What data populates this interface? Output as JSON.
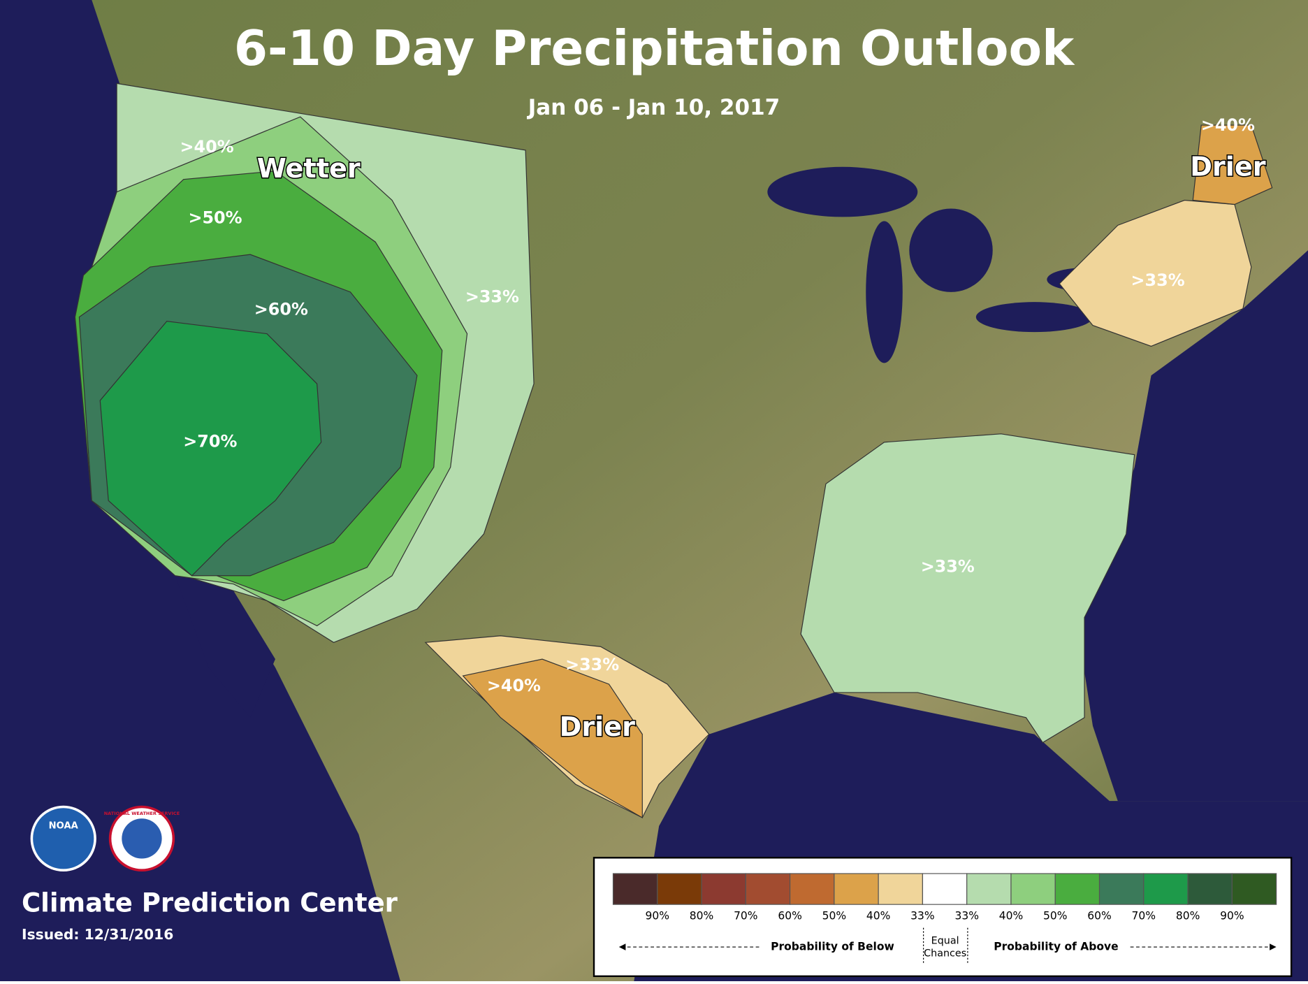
{
  "header": {
    "title": "6-10 Day Precipitation Outlook",
    "subtitle": "Jan 06 - Jan 10, 2017"
  },
  "map_labels": [
    ">40%",
    "Wetter",
    ">50%",
    ">60%",
    ">70%",
    ">33%",
    ">40%",
    "Drier",
    ">33%",
    ">33%",
    ">33%",
    ">40%",
    "Drier"
  ],
  "logos": {
    "noaa": "NOAA",
    "nws": "NATIONAL WEATHER SERVICE"
  },
  "legend": {
    "swatch_colors": [
      "#4a2a2a",
      "#7a3a08",
      "#8c3a30",
      "#a24c30",
      "#bf6a30",
      "#dca24a",
      "#f0d59a",
      "#ffffff",
      "#b5dcae",
      "#8ecf7e",
      "#4aad3f",
      "#3b7a5a",
      "#1e9a4a",
      "#2d5a3a",
      "#2f5a22"
    ],
    "labels": [
      "90%",
      "80%",
      "70%",
      "60%",
      "50%",
      "40%",
      "33%",
      "33%",
      "40%",
      "50%",
      "60%",
      "70%",
      "80%",
      "90%"
    ],
    "below": "Probability of Below",
    "equal": [
      "Equal",
      "Chances"
    ],
    "above": "Probability of Above"
  },
  "footer": {
    "org": "Climate Prediction Center",
    "issued": "Issued: 12/31/2016"
  }
}
